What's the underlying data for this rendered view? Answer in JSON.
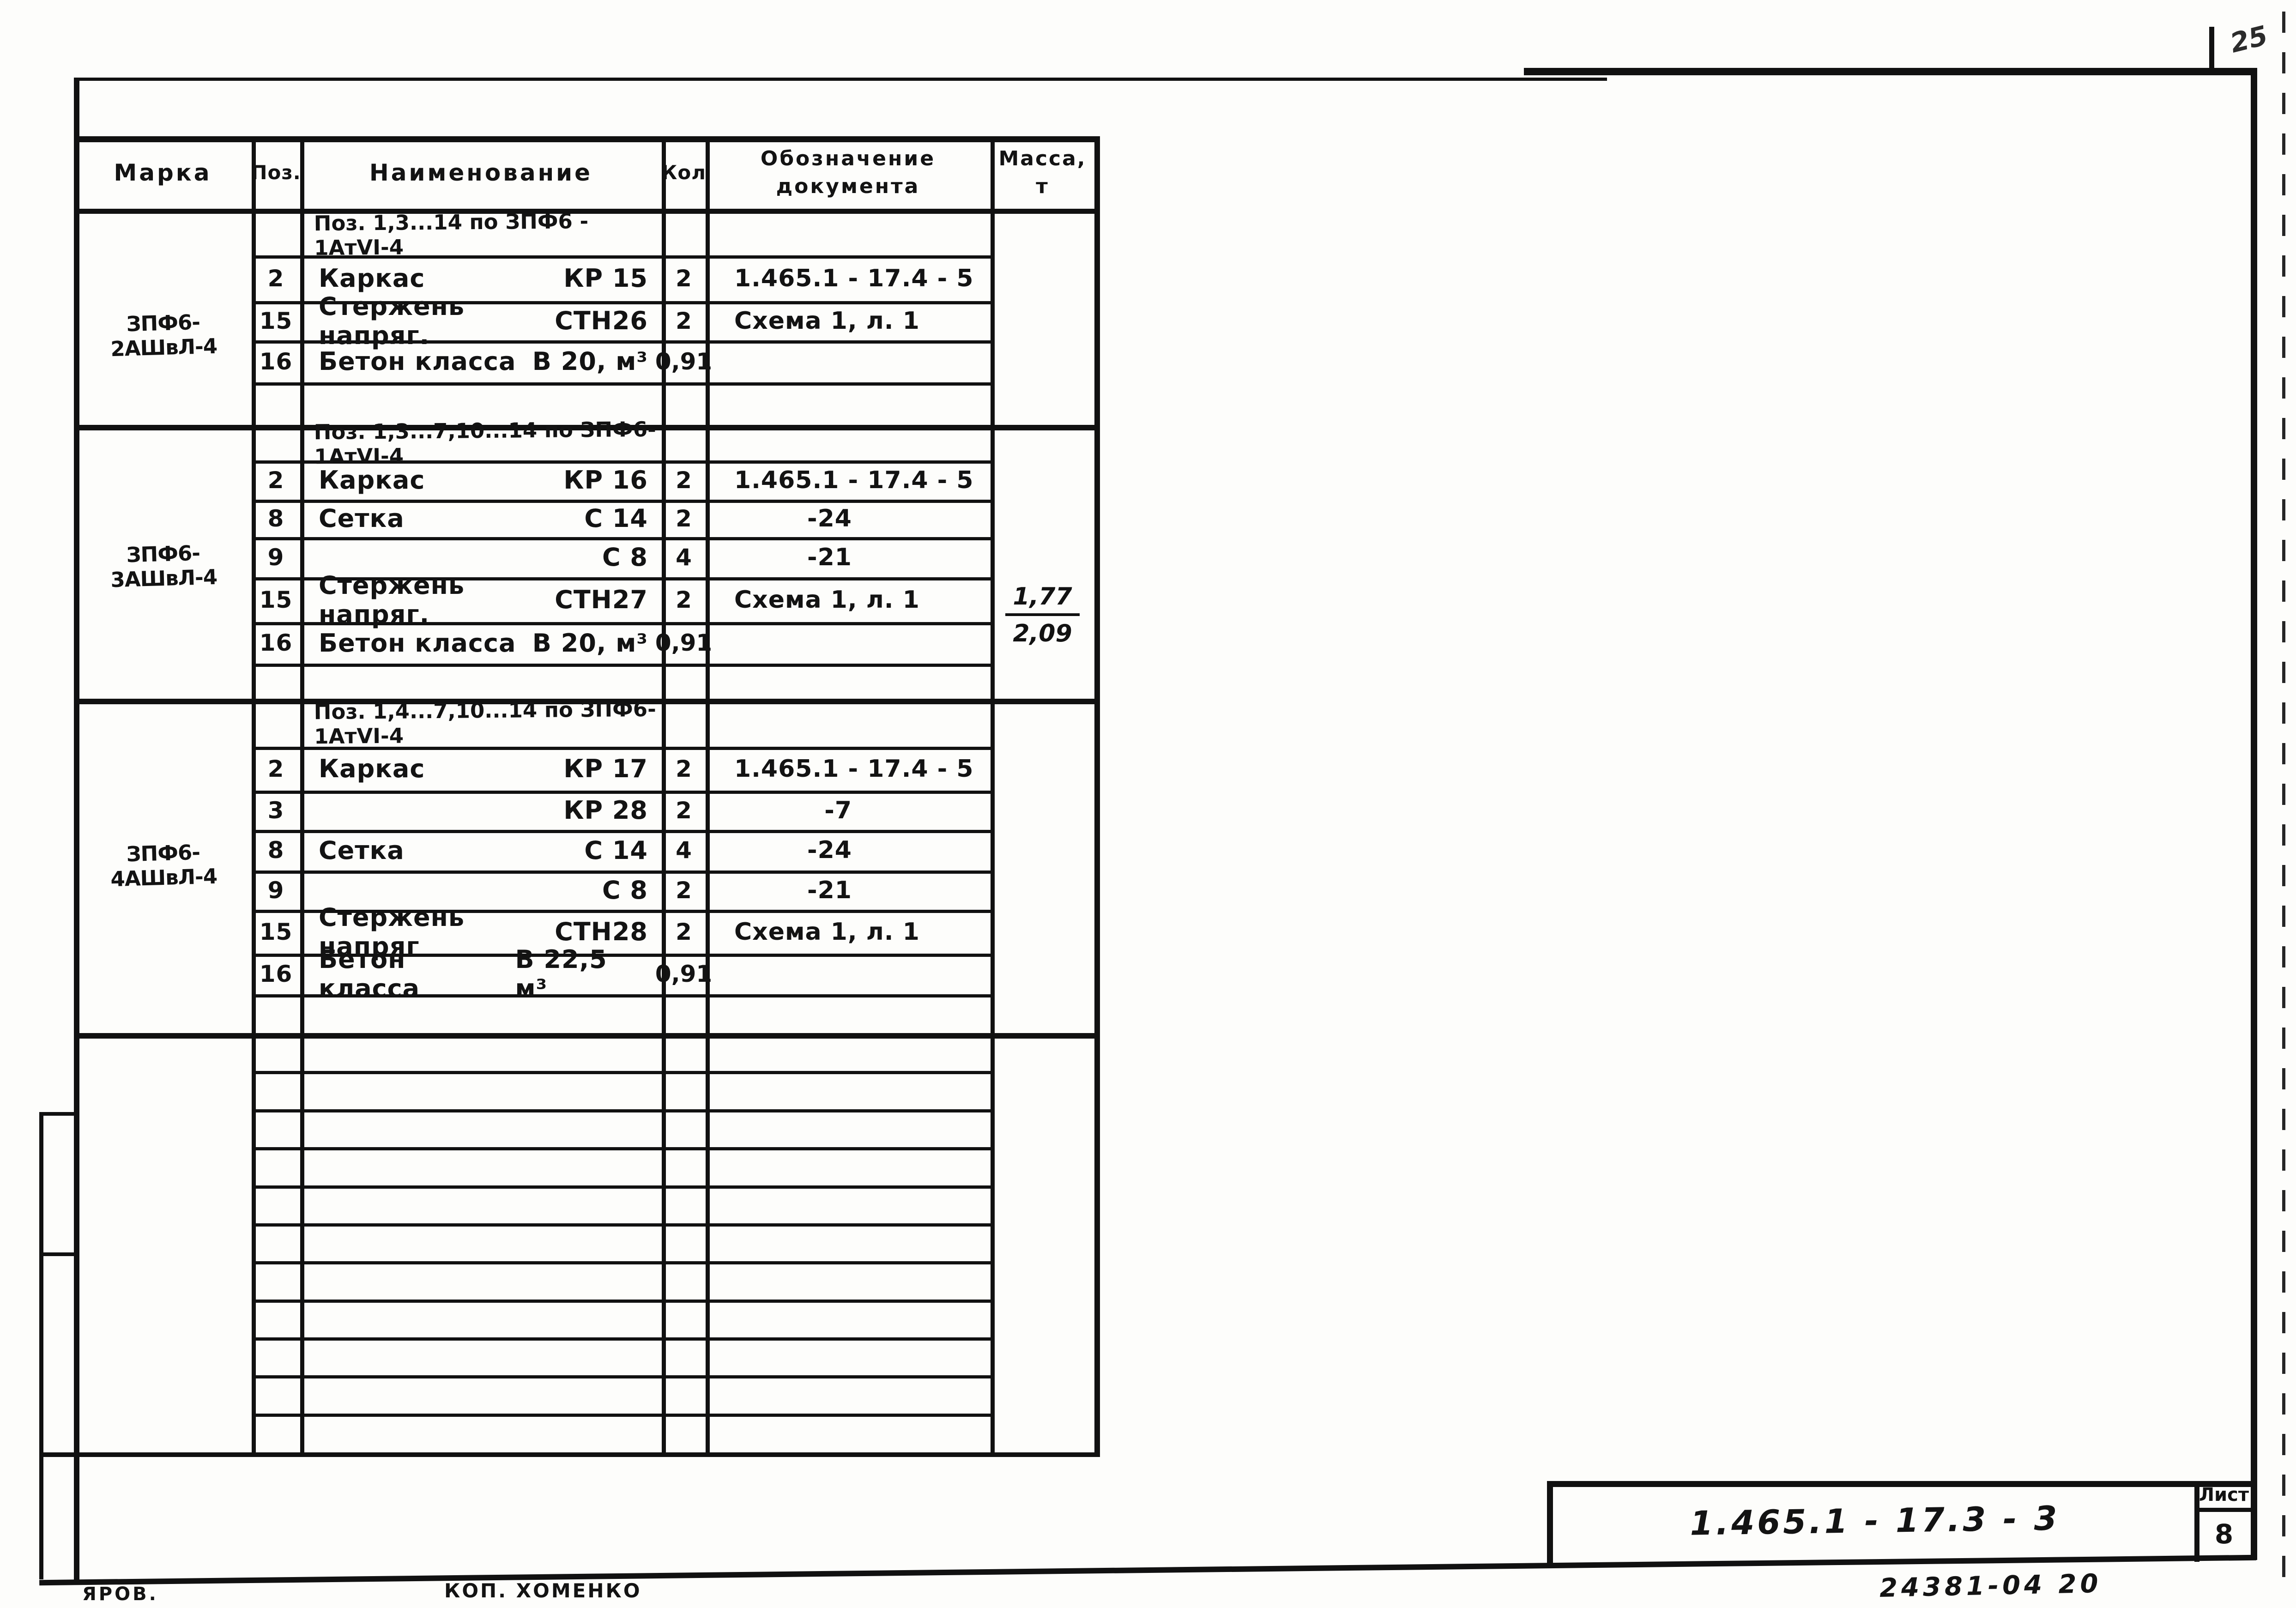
{
  "corner_note": "25",
  "table": {
    "header": {
      "mark": "Марка",
      "pos": "Поз.",
      "name": "Наименование",
      "qty": "Кол",
      "doc_line1": "Обозначение",
      "doc_line2": "документа",
      "mass_line1": "Масса,",
      "mass_line2": "т"
    },
    "sections": [
      {
        "mark": "ЗПФ6-2АШвЛ-4",
        "rows": [
          {
            "note": "Поз. 1,3...14 по ЗПФ6 - 1АтVI-4"
          },
          {
            "pos": "2",
            "name": "Каркас",
            "code": "КР 15",
            "qty": "2",
            "doc": "1.465.1 - 17.4 - 5"
          },
          {
            "pos": "15",
            "name": "Стержень напряг.",
            "code": "СТН26",
            "qty": "2",
            "doc": "Схема 1, л. 1"
          },
          {
            "pos": "16",
            "name": "Бетон класса",
            "code": "В 20, м³",
            "qty": "0,91",
            "doc": ""
          }
        ]
      },
      {
        "mark": "ЗПФ6-3АШвЛ-4",
        "mass": {
          "num": "1,77",
          "den": "2,09"
        },
        "rows": [
          {
            "note": "Поз. 1,3...7,10...14 по ЗПФ6-1АтVI-4"
          },
          {
            "pos": "2",
            "name": "Каркас",
            "code": "КР 16",
            "qty": "2",
            "doc": "1.465.1 - 17.4 - 5"
          },
          {
            "pos": "8",
            "name": "Сетка",
            "code": "С 14",
            "qty": "2",
            "doc": "-24"
          },
          {
            "pos": "9",
            "name": "",
            "code": "С 8",
            "qty": "4",
            "doc": "-21"
          },
          {
            "pos": "15",
            "name": "Стержень напряг.",
            "code": "СТН27",
            "qty": "2",
            "doc": "Схема 1, л. 1"
          },
          {
            "pos": "16",
            "name": "Бетон класса",
            "code": "В 20, м³",
            "qty": "0,91",
            "doc": ""
          }
        ]
      },
      {
        "mark": "ЗПФ6-4АШвЛ-4",
        "rows": [
          {
            "note": "Поз. 1,4...7,10...14 по ЗПФ6-1АтVI-4"
          },
          {
            "pos": "2",
            "name": "Каркас",
            "code": "КР 17",
            "qty": "2",
            "doc": "1.465.1 - 17.4 - 5"
          },
          {
            "pos": "3",
            "name": "",
            "code": "КР 28",
            "qty": "2",
            "doc": "-7"
          },
          {
            "pos": "8",
            "name": "Сетка",
            "code": "С 14",
            "qty": "4",
            "doc": "-24"
          },
          {
            "pos": "9",
            "name": "",
            "code": "С 8",
            "qty": "2",
            "doc": "-21"
          },
          {
            "pos": "15",
            "name": "Стержень напряг",
            "code": "СТН28",
            "qty": "2",
            "doc": "Схема 1, л. 1"
          },
          {
            "pos": "16",
            "name": "Бетон класса",
            "code": "В 22,5 м³",
            "qty": "0,91",
            "doc": ""
          }
        ]
      }
    ]
  },
  "title_block": {
    "doc_number": "1.465.1 - 17.3 - 3",
    "sheet_label": "Лист",
    "sheet_number": "8",
    "stamp_note": "24381-04   20"
  },
  "footer": {
    "left": "ЯРОВ.",
    "center": "КОП. ХОМЕНКО"
  }
}
